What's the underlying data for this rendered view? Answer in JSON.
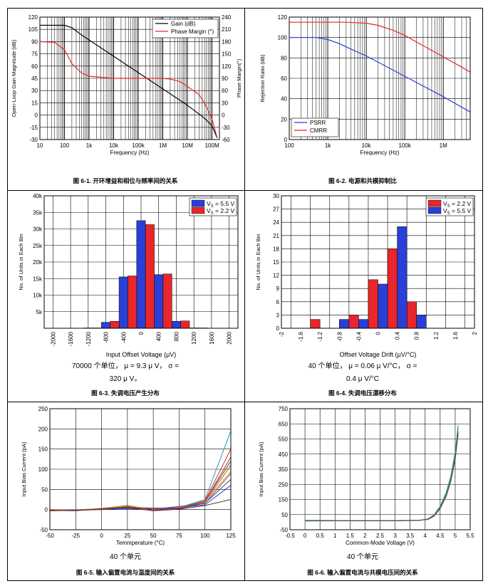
{
  "panels": {
    "p1": {
      "caption": "图 6-1. 开环增益和相位与频率间的关系"
    },
    "p2": {
      "caption": "图 6-2. 电源和共模抑制比"
    },
    "p3": {
      "caption": "图 6-3. 失调电压产生分布",
      "note1": "70000 个单位， μ = 9.3 μ V， σ =",
      "note2": "320 μ V。"
    },
    "p4": {
      "caption": "图 6-4. 失调电压漂移分布",
      "note1": "40 个单位， μ = 0.06 μ V/°C， σ =",
      "note2": "0.4 μ V/°C"
    },
    "p5": {
      "caption": "图 6-5. 输入偏置电流与温度间的关系",
      "note1": "40 个单元"
    },
    "p6": {
      "caption": "图 6-6. 输入偏置电流与共模电压间的关系",
      "note1": "40 个单元"
    }
  },
  "colors": {
    "black": "#000000",
    "red": "#e8262b",
    "blue": "#2a3fd6"
  },
  "chart_data": [
    {
      "id": "c1",
      "type": "line",
      "xlabel": "Frequency (Hz)",
      "ylabel": "Open-Loop Gain Magnitude (dB)",
      "y2label": "Phase Margin(°)",
      "xscale": "log",
      "xlim": [
        10,
        200000000
      ],
      "ylim": [
        -30,
        120
      ],
      "y2lim": [
        -60,
        240
      ],
      "xticks": [
        {
          "v": 10,
          "t": "10"
        },
        {
          "v": 100,
          "t": "100"
        },
        {
          "v": 1000,
          "t": "1k"
        },
        {
          "v": 10000,
          "t": "10k"
        },
        {
          "v": 100000,
          "t": "100k"
        },
        {
          "v": 1000000,
          "t": "1M"
        },
        {
          "v": 10000000,
          "t": "10M"
        },
        {
          "v": 100000000,
          "t": "100M"
        }
      ],
      "yticks": [
        -30,
        -15,
        0,
        15,
        30,
        45,
        60,
        75,
        90,
        105,
        120
      ],
      "y2ticks": [
        -60,
        -30,
        0,
        30,
        60,
        90,
        120,
        150,
        180,
        210,
        240
      ],
      "legend": "top-right",
      "series": [
        {
          "name": "Gain (dB)",
          "color": "black",
          "axis": "y",
          "points": [
            [
              10,
              110
            ],
            [
              100,
              110
            ],
            [
              200,
              107
            ],
            [
              500,
              98
            ],
            [
              1000,
              92
            ],
            [
              10000,
              72
            ],
            [
              100000,
              52
            ],
            [
              1000000,
              32
            ],
            [
              10000000,
              12
            ],
            [
              50000000,
              -4
            ],
            [
              100000000,
              -13
            ],
            [
              160000000,
              -28
            ]
          ]
        },
        {
          "name": "Phase Margin (°)",
          "color": "red",
          "axis": "y2",
          "points": [
            [
              10,
              180
            ],
            [
              40,
              178
            ],
            [
              100,
              160
            ],
            [
              200,
              126
            ],
            [
              500,
              103
            ],
            [
              1000,
              95
            ],
            [
              10000,
              90
            ],
            [
              100000,
              90
            ],
            [
              1000000,
              90
            ],
            [
              2000000,
              88
            ],
            [
              5000000,
              82
            ],
            [
              10000000,
              70
            ],
            [
              30000000,
              50
            ],
            [
              60000000,
              20
            ],
            [
              100000000,
              -10
            ],
            [
              160000000,
              -55
            ]
          ]
        }
      ]
    },
    {
      "id": "c2",
      "type": "line",
      "xlabel": "Frequency (Hz)",
      "ylabel": "Rejection Ratio (dB)",
      "xscale": "log",
      "xlim": [
        100,
        5000000
      ],
      "ylim": [
        0,
        120
      ],
      "xticks": [
        {
          "v": 100,
          "t": "100"
        },
        {
          "v": 1000,
          "t": "1k"
        },
        {
          "v": 10000,
          "t": "10k"
        },
        {
          "v": 100000,
          "t": "100k"
        },
        {
          "v": 1000000,
          "t": "1M"
        }
      ],
      "yticks": [
        0,
        20,
        40,
        60,
        80,
        100,
        120
      ],
      "legend": "bottom-left",
      "series": [
        {
          "name": "PSRR",
          "color": "blue",
          "points": [
            [
              100,
              100
            ],
            [
              500,
              100
            ],
            [
              1000,
              98
            ],
            [
              2000,
              94
            ],
            [
              5000,
              87
            ],
            [
              10000,
              82
            ],
            [
              100000,
              62
            ],
            [
              1000000,
              42
            ],
            [
              5000000,
              27
            ]
          ]
        },
        {
          "name": "CMRR",
          "color": "red",
          "points": [
            [
              100,
              115
            ],
            [
              3000,
              115
            ],
            [
              10000,
              114
            ],
            [
              20000,
              112
            ],
            [
              50000,
              107
            ],
            [
              100000,
              102
            ],
            [
              300000,
              92
            ],
            [
              1000000,
              81
            ],
            [
              3000000,
              71
            ],
            [
              5000000,
              66
            ]
          ]
        }
      ]
    },
    {
      "id": "c3",
      "type": "bar",
      "xlabel": "Input Offset Voltage (µV)",
      "ylabel": "No. of Units in Each Bin",
      "xlim": [
        -2200,
        2200
      ],
      "ylim": [
        0,
        40000
      ],
      "binwidth": 200,
      "xticks": [
        {
          "v": -2000,
          "t": "-2000"
        },
        {
          "v": -1600,
          "t": "-1600"
        },
        {
          "v": -1200,
          "t": "-1200"
        },
        {
          "v": -800,
          "t": "-800"
        },
        {
          "v": -400,
          "t": "-400"
        },
        {
          "v": 0,
          "t": "0"
        },
        {
          "v": 400,
          "t": "400"
        },
        {
          "v": 800,
          "t": "800"
        },
        {
          "v": 1200,
          "t": "1200"
        },
        {
          "v": 1600,
          "t": "1600"
        },
        {
          "v": 2000,
          "t": "2000"
        }
      ],
      "yticks": [
        {
          "v": 5000,
          "t": "5k"
        },
        {
          "v": 10000,
          "t": "10k"
        },
        {
          "v": 15000,
          "t": "15k"
        },
        {
          "v": 20000,
          "t": "20k"
        },
        {
          "v": 25000,
          "t": "25k"
        },
        {
          "v": 30000,
          "t": "30k"
        },
        {
          "v": 35000,
          "t": "35k"
        },
        {
          "v": 40000,
          "t": "40k"
        }
      ],
      "legend": "top-right",
      "series": [
        {
          "name": "V_S = 5.5 V",
          "label": "V",
          "sub": "S",
          "suffix": " = 5.5 V",
          "color": "blue",
          "bins": [
            [
              -1200,
              100
            ],
            [
              -800,
              1800
            ],
            [
              -400,
              15500
            ],
            [
              0,
              32500
            ],
            [
              400,
              16200
            ],
            [
              800,
              2100
            ],
            [
              1200,
              100
            ]
          ]
        },
        {
          "name": "V_S = 2.2 V",
          "label": "V",
          "sub": "S",
          "suffix": " = 2.2 V",
          "color": "red",
          "bins": [
            [
              -1000,
              100
            ],
            [
              -600,
              2100
            ],
            [
              -200,
              15800
            ],
            [
              200,
              31300
            ],
            [
              600,
              16400
            ],
            [
              1000,
              2200
            ],
            [
              1400,
              100
            ]
          ]
        }
      ]
    },
    {
      "id": "c4",
      "type": "bar",
      "xlabel": "Offset Voltage Drift (µV/°C)",
      "ylabel": "No. of Units in Each Bin",
      "xlim": [
        -2,
        2
      ],
      "ylim": [
        0,
        30
      ],
      "binwidth": 0.2,
      "xticks": [
        {
          "v": -2,
          "t": "-2"
        },
        {
          "v": -1.6,
          "t": "-1.6"
        },
        {
          "v": -1.2,
          "t": "-1.2"
        },
        {
          "v": -0.8,
          "t": "-0.8"
        },
        {
          "v": -0.4,
          "t": "-0.4"
        },
        {
          "v": 0,
          "t": "0"
        },
        {
          "v": 0.4,
          "t": "0.4"
        },
        {
          "v": 0.8,
          "t": "0.8"
        },
        {
          "v": 1.2,
          "t": "1.2"
        },
        {
          "v": 1.6,
          "t": "1.6"
        },
        {
          "v": 2,
          "t": "2"
        }
      ],
      "yticks": [
        {
          "v": 0,
          "t": "0"
        },
        {
          "v": 3,
          "t": "3"
        },
        {
          "v": 6,
          "t": "6"
        },
        {
          "v": 9,
          "t": "9"
        },
        {
          "v": 12,
          "t": "12"
        },
        {
          "v": 15,
          "t": "15"
        },
        {
          "v": 18,
          "t": "18"
        },
        {
          "v": 21,
          "t": "21"
        },
        {
          "v": 24,
          "t": "24"
        },
        {
          "v": 27,
          "t": "27"
        },
        {
          "v": 30,
          "t": "30"
        }
      ],
      "legend": "top-right",
      "series": [
        {
          "name": "V_S = 2.2 V",
          "label": "V",
          "sub": "S",
          "suffix": " = 2.2 V",
          "color": "red",
          "bins": [
            [
              -1.3,
              2
            ],
            [
              -0.5,
              3
            ],
            [
              -0.1,
              11
            ],
            [
              0.3,
              18
            ],
            [
              0.7,
              6
            ]
          ]
        },
        {
          "name": "V_S = 5.5 V",
          "label": "V",
          "sub": "S",
          "suffix": " = 5.5 V",
          "color": "blue",
          "bins": [
            [
              -0.7,
              2
            ],
            [
              -0.3,
              2
            ],
            [
              0.1,
              10
            ],
            [
              0.5,
              23
            ],
            [
              0.9,
              3
            ]
          ]
        }
      ]
    },
    {
      "id": "c5",
      "type": "line",
      "xlabel": "Temmperature (°C)",
      "ylabel": "Input Bias Current (pA)",
      "xlim": [
        -50,
        125
      ],
      "ylim": [
        -50,
        250
      ],
      "xticks": [
        {
          "v": -50,
          "t": "-50"
        },
        {
          "v": -25,
          "t": "-25"
        },
        {
          "v": 0,
          "t": "0"
        },
        {
          "v": 25,
          "t": "25"
        },
        {
          "v": 50,
          "t": "50"
        },
        {
          "v": 75,
          "t": "75"
        },
        {
          "v": 100,
          "t": "100"
        },
        {
          "v": 125,
          "t": "125"
        }
      ],
      "yticks": [
        -50,
        0,
        50,
        100,
        150,
        200,
        250
      ],
      "x": [
        -50,
        -25,
        0,
        25,
        50,
        75,
        100,
        125
      ],
      "series": [
        {
          "name": "unit",
          "color": "#1aa3b8",
          "values": [
            -2,
            -2,
            2,
            8,
            3,
            5,
            25,
            195
          ]
        },
        {
          "name": "unit",
          "color": "#e8262b",
          "values": [
            -1,
            -1,
            1,
            6,
            2,
            4,
            22,
            150
          ]
        },
        {
          "name": "unit",
          "color": "#2b7a2b",
          "values": [
            0,
            -2,
            3,
            10,
            0,
            6,
            20,
            130
          ]
        },
        {
          "name": "unit",
          "color": "#b36b00",
          "values": [
            -3,
            -1,
            2,
            4,
            4,
            3,
            18,
            110
          ]
        },
        {
          "name": "unit",
          "color": "#7a3db8",
          "values": [
            -1,
            0,
            1,
            5,
            1,
            8,
            15,
            90
          ]
        },
        {
          "name": "unit",
          "color": "#4d4d4d",
          "values": [
            -2,
            -2,
            0,
            3,
            -2,
            2,
            16,
            75
          ]
        },
        {
          "name": "unit",
          "color": "#d6a21a",
          "values": [
            0,
            -1,
            3,
            9,
            1,
            5,
            19,
            95
          ]
        },
        {
          "name": "unit",
          "color": "#2a3fd6",
          "values": [
            -2,
            -3,
            2,
            2,
            3,
            4,
            12,
            60
          ]
        },
        {
          "name": "unit",
          "color": "#c2185b",
          "values": [
            -1,
            -2,
            1,
            7,
            0,
            3,
            21,
            120
          ]
        },
        {
          "name": "unit",
          "color": "#5c3a1e",
          "values": [
            -3,
            -2,
            2,
            6,
            -3,
            1,
            10,
            25
          ]
        }
      ]
    },
    {
      "id": "c6",
      "type": "line",
      "xlabel": "Common-Mode Voltage (V)",
      "ylabel": "Input Bias Current (pA)",
      "xlim": [
        -0.5,
        5.5
      ],
      "ylim": [
        -50,
        750
      ],
      "xticks": [
        {
          "v": -0.5,
          "t": "-0.5"
        },
        {
          "v": 0,
          "t": "0"
        },
        {
          "v": 0.5,
          "t": "0.5"
        },
        {
          "v": 1,
          "t": "1"
        },
        {
          "v": 1.5,
          "t": "1.5"
        },
        {
          "v": 2,
          "t": "2"
        },
        {
          "v": 2.5,
          "t": "2.5"
        },
        {
          "v": 3,
          "t": "3"
        },
        {
          "v": 3.5,
          "t": "3.5"
        },
        {
          "v": 4,
          "t": "4"
        },
        {
          "v": 4.5,
          "t": "4.5"
        },
        {
          "v": 5,
          "t": "5"
        },
        {
          "v": 5.5,
          "t": "5.5"
        }
      ],
      "yticks": [
        -50,
        50,
        150,
        250,
        350,
        450,
        550,
        650,
        750
      ],
      "x": [
        0,
        1,
        2,
        3,
        3.8,
        4.1,
        4.3,
        4.5,
        4.7,
        4.85,
        5.0,
        5.1
      ],
      "series": [
        {
          "name": "unit",
          "color": "#e8262b",
          "values": [
            10,
            10,
            10,
            10,
            12,
            20,
            45,
            95,
            180,
            280,
            430,
            600
          ]
        },
        {
          "name": "unit",
          "color": "#2b7a2b",
          "values": [
            8,
            9,
            9,
            9,
            11,
            22,
            50,
            105,
            195,
            300,
            460,
            640
          ]
        },
        {
          "name": "unit",
          "color": "#b36b00",
          "values": [
            12,
            11,
            11,
            10,
            13,
            18,
            40,
            88,
            170,
            265,
            410,
            580
          ]
        },
        {
          "name": "unit",
          "color": "#1aa3b8",
          "values": [
            9,
            10,
            10,
            11,
            12,
            21,
            48,
            100,
            188,
            290,
            445,
            620
          ]
        },
        {
          "name": "unit",
          "color": "#4d4d4d",
          "values": [
            11,
            10,
            9,
            10,
            12,
            19,
            43,
            92,
            175,
            272,
            420,
            595
          ]
        }
      ]
    }
  ]
}
